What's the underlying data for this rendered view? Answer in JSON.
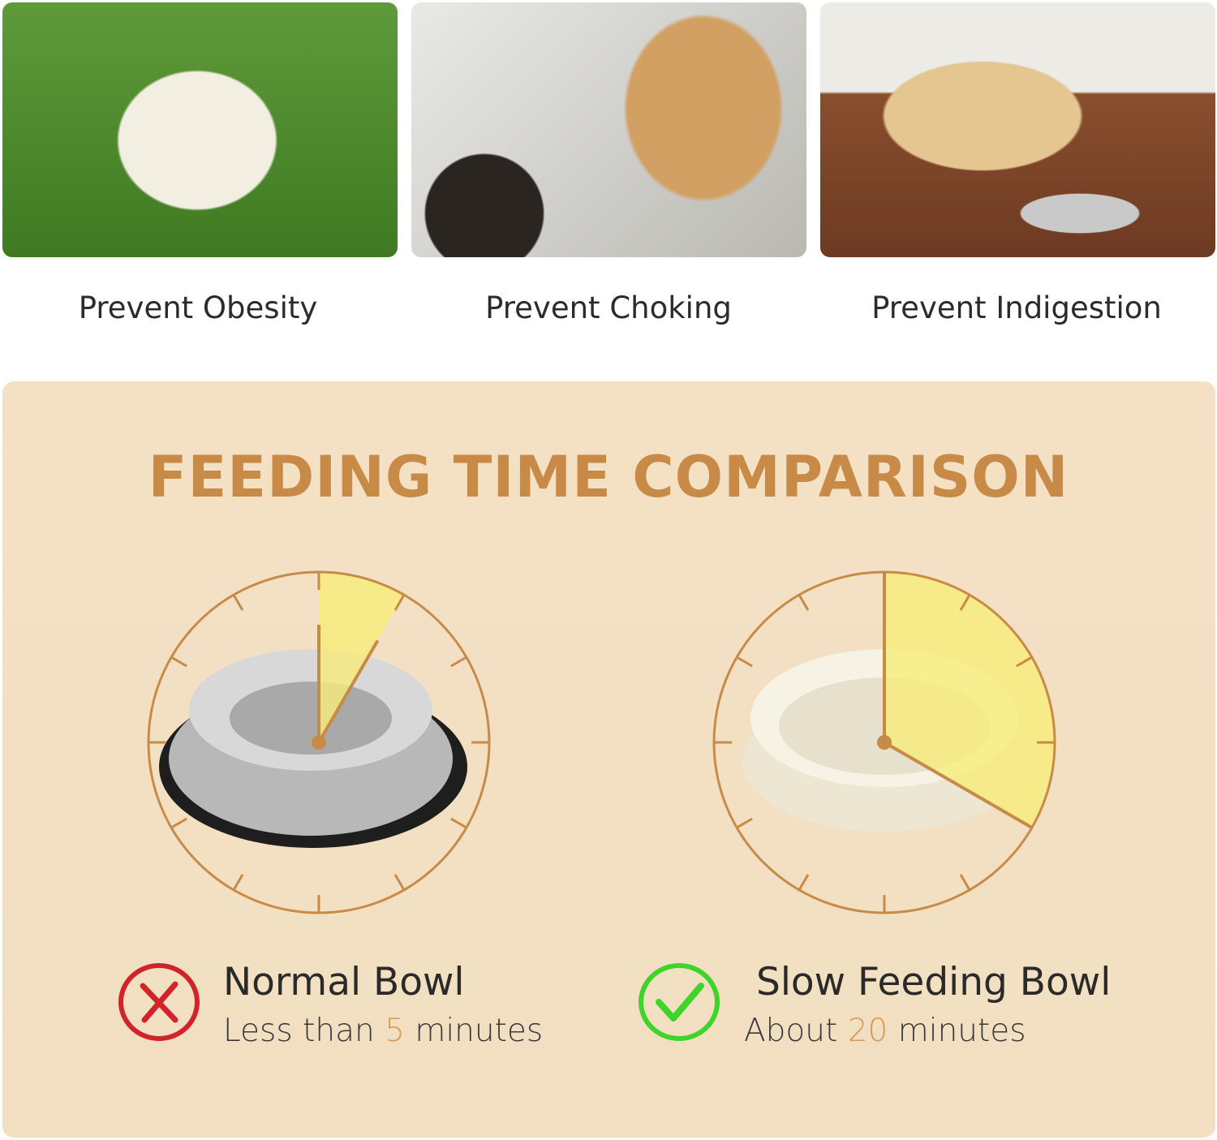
{
  "benefits": [
    {
      "label": "Prevent Obesity"
    },
    {
      "label": "Prevent Choking"
    },
    {
      "label": "Prevent Indigestion"
    }
  ],
  "comparison": {
    "title": "FEEDING TIME COMPARISON",
    "accent_color": "#c88a47",
    "highlight_color": "#f7ec7a",
    "normal": {
      "name": "Normal Bowl",
      "prefix": "Less than ",
      "value": "5",
      "suffix": " minutes",
      "minutes_shown": 5,
      "icon": "x-circle-icon",
      "icon_color": "#d1232a"
    },
    "slow": {
      "name": "Slow Feeding Bowl",
      "prefix": "About ",
      "value": "20",
      "suffix": " minutes",
      "minutes_shown": 20,
      "icon": "check-circle-icon",
      "icon_color": "#3fd42a"
    }
  }
}
